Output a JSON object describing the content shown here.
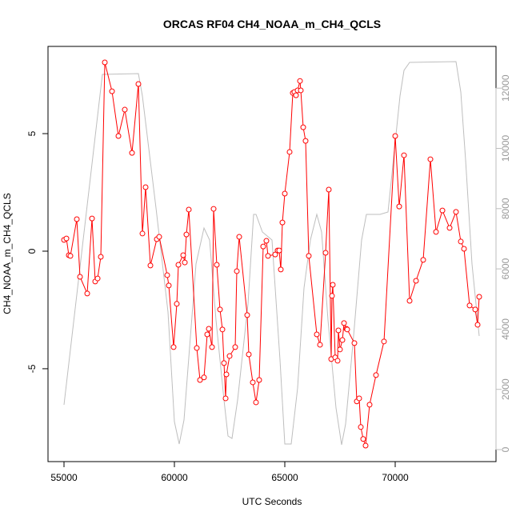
{
  "chart_data": {
    "type": "line",
    "title": "ORCAS RF04 CH4_NOAA_m_CH4_QCLS",
    "x_label": "UTC Seconds",
    "y_label": "CH4_NOAA_m_CH4_QCLS",
    "xlim": [
      54275,
      74565
    ],
    "ylim": [
      -8.95,
      8.71
    ],
    "y2lim": [
      -398,
      13386
    ],
    "xticks": [
      55000,
      60000,
      65000,
      70000
    ],
    "yticks": [
      -5,
      0,
      5
    ],
    "y2ticks": [
      0,
      2000,
      4000,
      6000,
      8000,
      10000,
      12000
    ],
    "series": [
      {
        "color": "#ff0000",
        "markers": true,
        "x": [
          55000,
          55109,
          55217,
          55290,
          55580,
          55725,
          56051,
          56268,
          56413,
          56522,
          56667,
          56848,
          57174,
          57464,
          57753,
          58080,
          58369,
          58551,
          58695,
          58913,
          59203,
          59311,
          59674,
          59746,
          59964,
          60108,
          60181,
          60398,
          60471,
          60543,
          60652,
          61014,
          61159,
          61340,
          61485,
          61558,
          61703,
          61775,
          61920,
          62065,
          62174,
          62246,
          62319,
          62355,
          62500,
          62753,
          62826,
          62935,
          63297,
          63369,
          63550,
          63695,
          63840,
          64021,
          64166,
          64239,
          64565,
          64674,
          64746,
          64819,
          64891,
          65000,
          65217,
          65362,
          65434,
          65507,
          65579,
          65688,
          65724,
          65833,
          65941,
          66086,
          66449,
          66594,
          66847,
          66992,
          67101,
          67137,
          67173,
          67282,
          67391,
          67427,
          67499,
          67608,
          67681,
          67789,
          67826,
          68152,
          68261,
          68369,
          68442,
          68550,
          68659,
          68840,
          69130,
          69492,
          70000,
          70181,
          70398,
          70652,
          70942,
          71268,
          71594,
          71848,
          72138,
          72464,
          72753,
          72971,
          73116,
          73369,
          73623,
          73732,
          73804
        ],
        "values": [
          0.48,
          0.54,
          -0.17,
          -0.2,
          1.36,
          -1.09,
          -1.8,
          1.39,
          -1.29,
          -1.16,
          -0.24,
          8.03,
          6.8,
          4.9,
          6.02,
          4.18,
          7.11,
          0.75,
          2.72,
          -0.61,
          0.51,
          0.61,
          -1.02,
          -1.46,
          -4.08,
          -2.24,
          -0.58,
          -0.17,
          -0.48,
          0.71,
          1.77,
          -4.12,
          -5.48,
          -5.37,
          -3.54,
          -3.3,
          -4.08,
          1.8,
          -0.58,
          -2.48,
          -3.33,
          -4.76,
          -6.26,
          -5.24,
          -4.46,
          -4.08,
          -0.85,
          0.61,
          -2.72,
          -4.39,
          -5.58,
          -6.43,
          -5.48,
          0.2,
          0.44,
          -0.2,
          -0.14,
          0.03,
          0.03,
          -0.78,
          1.22,
          2.45,
          4.22,
          6.73,
          6.77,
          6.63,
          6.84,
          7.24,
          6.84,
          5.27,
          4.69,
          -0.2,
          -3.54,
          -3.98,
          -0.07,
          2.62,
          -4.59,
          -1.9,
          -1.43,
          -4.52,
          -4.66,
          -3.37,
          -4.18,
          -3.78,
          -3.06,
          -3.3,
          -3.33,
          -3.91,
          -6.39,
          -6.26,
          -7.48,
          -7.99,
          -8.27,
          -6.53,
          -5.27,
          -3.84,
          4.9,
          1.9,
          4.08,
          -2.11,
          -1.26,
          -0.37,
          3.91,
          0.82,
          1.73,
          0.99,
          1.67,
          0.41,
          0.1,
          -2.31,
          -2.48,
          -3.13,
          -1.94
        ]
      },
      {
        "color": "#bebebe",
        "axis": "y2",
        "markers": false,
        "x": [
          55000,
          56739,
          58369,
          58551,
          59167,
          59710,
          59999,
          60217,
          60434,
          60978,
          61340,
          61594,
          61884,
          62246,
          62427,
          62609,
          62862,
          63333,
          63586,
          63695,
          63985,
          64420,
          64782,
          65000,
          65290,
          65579,
          65869,
          66159,
          66449,
          66666,
          66956,
          67318,
          67572,
          67753,
          68115,
          68478,
          68695,
          69311,
          69673,
          70217,
          70398,
          70652,
          72753,
          72971,
          73188,
          73478,
          73804
        ],
        "values": [
          1487,
          12457,
          12483,
          11740,
          8021,
          4568,
          930,
          186,
          983,
          6162,
          7357,
          6959,
          4303,
          1647,
          452,
          372,
          1647,
          4834,
          7809,
          7809,
          7224,
          6959,
          2975,
          186,
          186,
          2045,
          5365,
          6959,
          7809,
          7224,
          4303,
          1381,
          159,
          850,
          3772,
          6959,
          7809,
          7809,
          7888,
          11740,
          12590,
          12855,
          12882,
          11873,
          9615,
          6162,
          3772
        ]
      }
    ]
  }
}
